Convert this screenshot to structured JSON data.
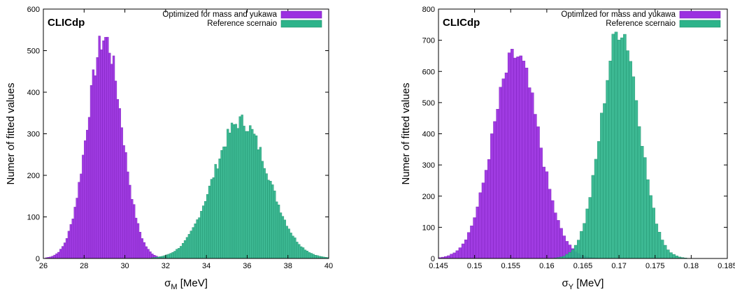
{
  "colors": {
    "series1": "#9b30e0",
    "series2": "#2db38a",
    "series1_edge": "#7a1fb8",
    "series2_edge": "#1e8f6c"
  },
  "chart_data": [
    {
      "type": "bar",
      "tag": "CLICdp",
      "xlabel": "σ",
      "xlabel_sub": "M",
      "xlabel_unit": " [MeV]",
      "ylabel": "Numer of fitted values",
      "xlim": [
        26,
        40
      ],
      "ylim": [
        0,
        600
      ],
      "xticks": [
        26,
        28,
        30,
        32,
        34,
        36,
        38,
        40
      ],
      "yticks": [
        0,
        100,
        200,
        300,
        400,
        500,
        600
      ],
      "legend_position": "top-right",
      "series": [
        {
          "name": "Optimized for mass and yukawa",
          "mean": 29.0,
          "sigma": 0.85,
          "peak": 530
        },
        {
          "name": "Reference scernaio",
          "mean": 35.7,
          "sigma": 1.35,
          "peak": 330
        }
      ]
    },
    {
      "type": "bar",
      "tag": "CLICdp",
      "xlabel": "σ",
      "xlabel_sub": "Y",
      "xlabel_unit": " [MeV]",
      "ylabel": "Numer of fitted values",
      "xlim": [
        0.145,
        0.185
      ],
      "ylim": [
        0,
        800
      ],
      "xticks": [
        0.145,
        0.15,
        0.155,
        0.16,
        0.165,
        0.17,
        0.175,
        0.18,
        0.185
      ],
      "yticks": [
        0,
        100,
        200,
        300,
        400,
        500,
        600,
        700,
        800
      ],
      "legend_position": "top-right",
      "series": [
        {
          "name": "Optimized for mass and yukawa",
          "mean": 0.1557,
          "sigma": 0.0032,
          "peak": 650
        },
        {
          "name": "Reference scernaio",
          "mean": 0.1702,
          "sigma": 0.0026,
          "peak": 740
        }
      ]
    }
  ]
}
